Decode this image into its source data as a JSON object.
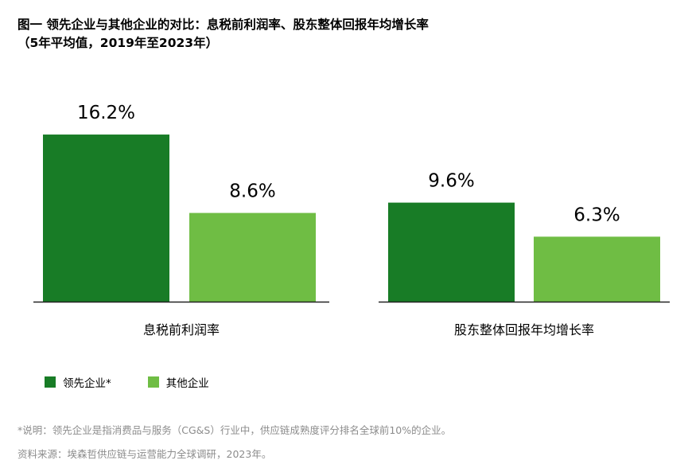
{
  "title": {
    "line1": "图一  领先企业与其他企业的对比：息税前利润率、股东整体回报年均增长率",
    "line2": "（5年平均值，2019年至2023年）"
  },
  "colors": {
    "leader": "#187c26",
    "other": "#6fbd44",
    "axis": "#222222"
  },
  "chart_data": [
    {
      "type": "bar",
      "xlabel": "息税前利润率",
      "series": [
        {
          "name": "领先企业*",
          "values": [
            16.2
          ],
          "labels": [
            "16.2%"
          ]
        },
        {
          "name": "其他企业",
          "values": [
            8.6
          ],
          "labels": [
            "8.6%"
          ]
        }
      ],
      "ylim": [
        0,
        18
      ]
    },
    {
      "type": "bar",
      "xlabel": "股东整体回报年均增长率",
      "series": [
        {
          "name": "领先企业*",
          "values": [
            9.6
          ],
          "labels": [
            "9.6%"
          ]
        },
        {
          "name": "其他企业",
          "values": [
            6.3
          ],
          "labels": [
            "6.3%"
          ]
        }
      ],
      "ylim": [
        0,
        18
      ]
    }
  ],
  "legend": [
    {
      "label": "领先企业*"
    },
    {
      "label": "其他企业"
    }
  ],
  "footnotes": {
    "note": "*说明：领先企业是指消费品与服务（CG&S）行业中，供应链成熟度评分排名全球前10%的企业。",
    "source": "资料来源：埃森哲供应链与运营能力全球调研，2023年。"
  }
}
